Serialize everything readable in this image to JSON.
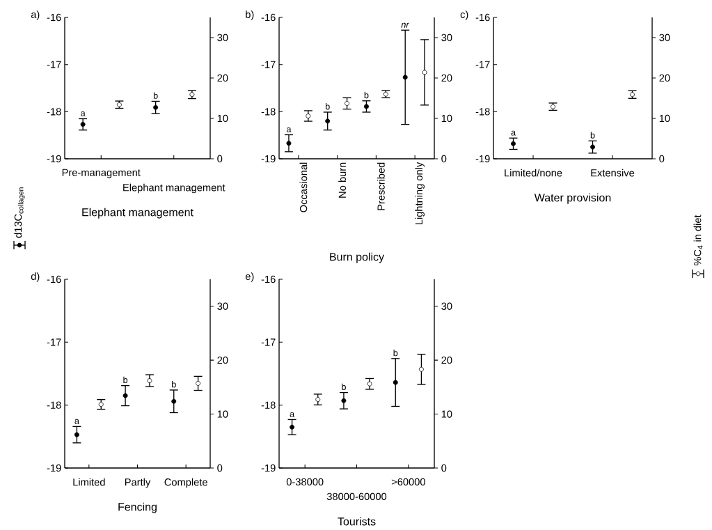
{
  "chart_data": [
    {
      "type": "scatter",
      "title": "a)",
      "xlabel": "Elephant management",
      "categories": [
        "Pre-management",
        "Elephant management"
      ],
      "ylim": [
        -19,
        -16
      ],
      "yticks": [
        -19,
        -18,
        -17,
        -16
      ],
      "y2lim": [
        0,
        35
      ],
      "y2ticks": [
        0,
        10,
        20,
        30
      ],
      "marker": "circle",
      "legend": "left",
      "series": [
        {
          "name": "d13C$_{collagen}$",
          "color": "#000000",
          "axis": "y",
          "values": [
            -18.27,
            -17.91
          ],
          "errors": [
            0.12,
            0.13
          ]
        },
        {
          "color": "#ffffff",
          "axis": "y2",
          "values": [
            13.4,
            15.9
          ],
          "errors": [
            0.9,
            1.0
          ]
        }
      ],
      "annotations": [
        "a",
        "b"
      ]
    },
    {
      "type": "scatter",
      "title": "b)",
      "xlabel": "Burn policy",
      "categories": [
        "Occasional",
        "No burn",
        "Prescribed",
        "Lightning only"
      ],
      "ylim": [
        -19,
        -16
      ],
      "yticks": [
        -19,
        -18,
        -17,
        -16
      ],
      "y2lim": [
        0,
        35
      ],
      "y2ticks": [
        0,
        10,
        20,
        30
      ],
      "marker": "circle",
      "series": [
        {
          "color": "#000000",
          "axis": "y",
          "values": [
            -18.67,
            -18.2,
            -17.89,
            -17.27
          ],
          "errors": [
            0.18,
            0.19,
            0.12,
            1.0
          ]
        },
        {
          "color": "#ffffff",
          "axis": "y2",
          "values": [
            10.6,
            13.7,
            16.0,
            21.4
          ],
          "errors": [
            1.3,
            1.4,
            0.9,
            8.1
          ]
        }
      ],
      "annotations": [
        "a",
        "b",
        "b",
        "*nr*"
      ]
    },
    {
      "type": "scatter",
      "title": "c)",
      "xlabel": "Water provision",
      "categories": [
        "Limited/none",
        "Extensive"
      ],
      "ylim": [
        -19,
        -16
      ],
      "yticks": [
        -19,
        -18,
        -17,
        -16
      ],
      "y2lim": [
        0,
        35
      ],
      "y2ticks": [
        0,
        10,
        20,
        30
      ],
      "marker": "circle",
      "legend": "right",
      "series": [
        {
          "color": "#000000",
          "axis": "y",
          "values": [
            -18.68,
            -18.75
          ],
          "errors": [
            0.12,
            0.13
          ]
        },
        {
          "name": "%C$_{4}$ in diet",
          "color": "#ffffff",
          "axis": "y2",
          "values": [
            12.9,
            15.9
          ],
          "errors": [
            0.9,
            0.95
          ]
        }
      ],
      "annotations": [
        "a",
        "b"
      ]
    },
    {
      "type": "scatter",
      "title": "d)",
      "xlabel": "Fencing",
      "categories": [
        "Limited",
        "Partly",
        "Complete"
      ],
      "ylim": [
        -19,
        -16
      ],
      "yticks": [
        -19,
        -18,
        -17,
        -16
      ],
      "y2lim": [
        0,
        35
      ],
      "y2ticks": [
        0,
        10,
        20,
        30
      ],
      "marker": "circle",
      "series": [
        {
          "color": "#000000",
          "axis": "y",
          "values": [
            -18.47,
            -17.85,
            -17.94
          ],
          "errors": [
            0.13,
            0.16,
            0.18
          ]
        },
        {
          "color": "#ffffff",
          "axis": "y2",
          "values": [
            11.8,
            16.2,
            15.7
          ],
          "errors": [
            0.9,
            1.1,
            1.3
          ]
        }
      ],
      "annotations": [
        "a",
        "b",
        "b"
      ]
    },
    {
      "type": "scatter",
      "title": "e)",
      "xlabel": "Tourists",
      "categories": [
        "0-38000",
        "38000-60000",
        ">60000"
      ],
      "ylim": [
        -19,
        -16
      ],
      "yticks": [
        -19,
        -18,
        -17,
        -16
      ],
      "y2lim": [
        0,
        35
      ],
      "y2ticks": [
        0,
        10,
        20,
        30
      ],
      "marker": "circle",
      "series": [
        {
          "color": "#000000",
          "axis": "y",
          "values": [
            -18.35,
            -17.93,
            -17.64
          ],
          "errors": [
            0.12,
            0.13,
            0.38
          ]
        },
        {
          "color": "#ffffff",
          "axis": "y2",
          "values": [
            12.7,
            15.6,
            18.3
          ],
          "errors": [
            1.0,
            1.0,
            2.8
          ]
        }
      ],
      "annotations": [
        "a",
        "b",
        "b"
      ]
    }
  ]
}
